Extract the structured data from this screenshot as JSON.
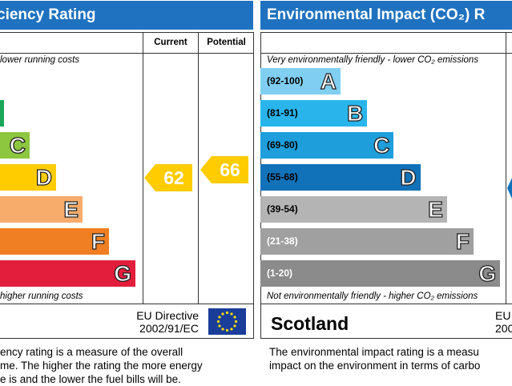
{
  "left_panel": {
    "title": "ciency Rating",
    "columns": [
      "Current",
      "Potential"
    ],
    "top_note": "lower running costs",
    "bands": [
      "C",
      "D",
      "E",
      "F",
      "G"
    ],
    "bottom_note": "higher running costs",
    "current": "62",
    "potential": "66",
    "directive": [
      "EU Directive",
      "2002/91/EC"
    ],
    "description": [
      "ency rating is a measure of the overall",
      "me.  The higher the rating the more energy",
      "e is and the lower the fuel bills will be."
    ]
  },
  "right_panel": {
    "title": "Environmental Impact (CO₂) R",
    "top_note": "Very environmentally friendly - lower CO₂ emissions",
    "bands": [
      {
        "range": "(92-100)",
        "letter": "A"
      },
      {
        "range": "(81-91)",
        "letter": "B"
      },
      {
        "range": "(69-80)",
        "letter": "C"
      },
      {
        "range": "(55-68)",
        "letter": "D"
      },
      {
        "range": "(39-54)",
        "letter": "E"
      },
      {
        "range": "(21-38)",
        "letter": "F"
      },
      {
        "range": "(1-20)",
        "letter": "G"
      }
    ],
    "bottom_note": "Not environmentally friendly - higher CO₂ emissions",
    "region": "Scotland",
    "directive": [
      "EU",
      "200"
    ],
    "description": [
      "The environmental impact rating is a measu",
      "impact on the environment in terms of carbo"
    ]
  }
}
